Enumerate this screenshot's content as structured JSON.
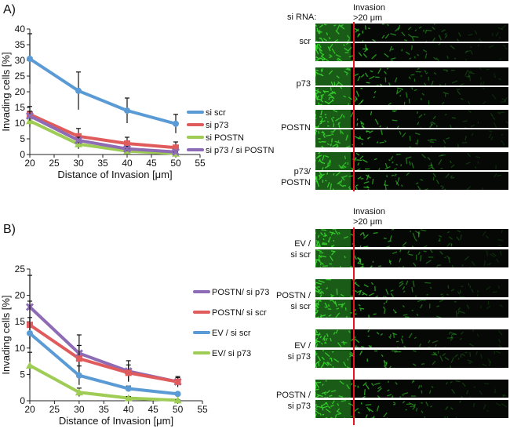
{
  "panels": {
    "a_label": "A)",
    "b_label": "B)"
  },
  "microscopy": {
    "top": {
      "header": "si RNA:",
      "invasion_line1": "Invasion",
      "invasion_line2": ">20 μm",
      "groups": [
        {
          "line1": "scr",
          "line2": ""
        },
        {
          "line1": "p73",
          "line2": ""
        },
        {
          "line1": "POSTN",
          "line2": ""
        },
        {
          "line1": "p73/",
          "line2": "POSTN"
        }
      ]
    },
    "bottom": {
      "invasion_line1": "Invasion",
      "invasion_line2": ">20 μm",
      "groups": [
        {
          "line1": "EV /",
          "line2": "si scr"
        },
        {
          "line1": "POSTN /",
          "line2": "si scr"
        },
        {
          "line1": "EV /",
          "line2": "si p73"
        },
        {
          "line1": "POSTN /",
          "line2": "si p73"
        }
      ]
    },
    "colors": {
      "background": "#050805",
      "cells": "#36d12c",
      "marker": "#e8141e",
      "separator": "#ffffff"
    }
  },
  "chart_data": [
    {
      "type": "line",
      "panel": "A",
      "xlabel": "Distance of Invasion [μm]",
      "ylabel": "Invading cells [%]",
      "xlim": [
        20,
        55
      ],
      "ylim": [
        0,
        40
      ],
      "xticks": [
        20,
        25,
        30,
        35,
        40,
        45,
        50,
        55
      ],
      "yticks": [
        0,
        5,
        10,
        15,
        20,
        25,
        30,
        35,
        40
      ],
      "x": [
        20,
        30,
        40,
        50
      ],
      "series": [
        {
          "name": "si scr",
          "color": "#5b9bd5",
          "marker": "circle",
          "values": [
            30.5,
            20.3,
            14.0,
            9.8
          ],
          "errors": [
            8.0,
            6.0,
            4.0,
            3.0
          ]
        },
        {
          "name": "si p73",
          "color": "#e05b5b",
          "marker": "square",
          "values": [
            12.8,
            5.8,
            3.5,
            2.2
          ],
          "errors": [
            2.5,
            2.5,
            2.0,
            1.8
          ]
        },
        {
          "name": "si POSTN",
          "color": "#9ecc55",
          "marker": "triangle",
          "values": [
            10.7,
            3.3,
            1.1,
            0.3
          ],
          "errors": [
            2.0,
            1.5,
            0.8,
            0.5
          ]
        },
        {
          "name": "si p73 / si POSTN",
          "color": "#8e6bb5",
          "marker": "x",
          "values": [
            12.3,
            4.5,
            1.8,
            0.8
          ],
          "errors": [
            1.5,
            1.0,
            0.8,
            0.5
          ]
        }
      ]
    },
    {
      "type": "line",
      "panel": "B",
      "xlabel": "Distance of Invasion [μm]",
      "ylabel": "Invading cells [%]",
      "xlim": [
        20,
        55
      ],
      "ylim": [
        0,
        25
      ],
      "xticks": [
        20,
        25,
        30,
        35,
        40,
        45,
        50,
        55
      ],
      "yticks": [
        0,
        5,
        10,
        15,
        20,
        25
      ],
      "x": [
        20,
        30,
        40,
        50
      ],
      "series": [
        {
          "name": "POSTN/ si p73",
          "color": "#8e6bb5",
          "marker": "x",
          "values": [
            17.8,
            9.0,
            5.6,
            3.6
          ],
          "errors": [
            6.0,
            3.5,
            2.0,
            1.0
          ]
        },
        {
          "name": "POSTN/ si scr",
          "color": "#e05b5b",
          "marker": "square",
          "values": [
            14.4,
            8.0,
            5.3,
            3.6
          ],
          "errors": [
            4.5,
            2.5,
            1.5,
            0.8
          ]
        },
        {
          "name": "EV / si scr",
          "color": "#5b9bd5",
          "marker": "circle",
          "values": [
            12.8,
            4.8,
            2.3,
            1.3
          ],
          "errors": [
            3.0,
            1.8,
            0.5,
            0.3
          ]
        },
        {
          "name": "EV/ si p73",
          "color": "#9ecc55",
          "marker": "triangle",
          "values": [
            6.7,
            1.6,
            0.5,
            0.1
          ],
          "errors": [
            2.5,
            0.8,
            0.3,
            0.1
          ]
        }
      ]
    }
  ]
}
